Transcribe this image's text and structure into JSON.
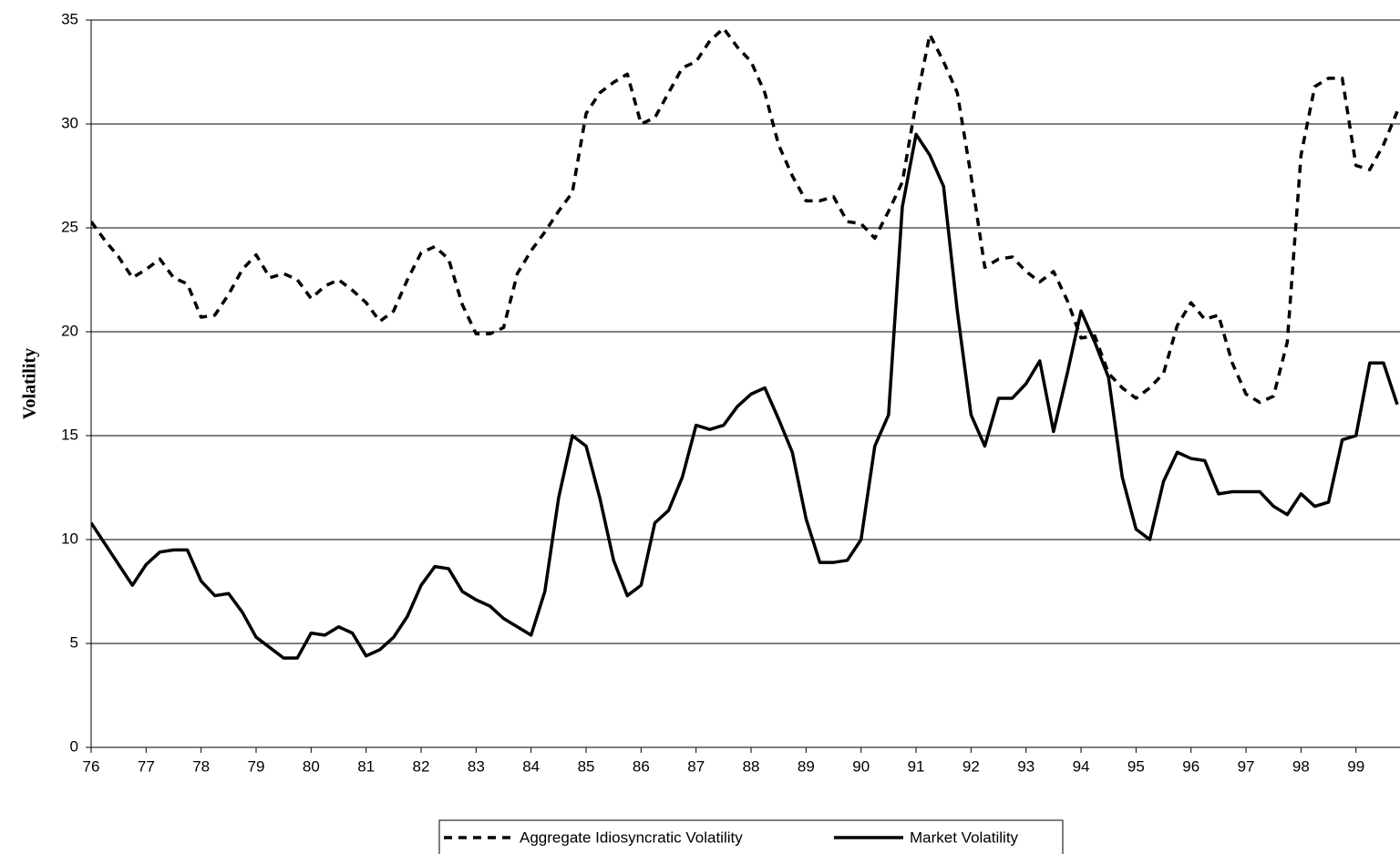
{
  "chart_data": {
    "type": "line",
    "y_label": "Volatility",
    "xlim": [
      76,
      99.8
    ],
    "xticks": [
      76,
      77,
      78,
      79,
      80,
      81,
      82,
      83,
      84,
      85,
      86,
      87,
      88,
      89,
      90,
      91,
      92,
      93,
      94,
      95,
      96,
      97,
      98,
      99
    ],
    "ylim": [
      0,
      35
    ],
    "yticks": [
      0,
      5,
      10,
      15,
      20,
      25,
      30,
      35
    ],
    "grid": true,
    "legend": "bottom",
    "x": [
      76,
      76.25,
      76.5,
      76.75,
      77,
      77.25,
      77.5,
      77.75,
      78,
      78.25,
      78.5,
      78.75,
      79,
      79.25,
      79.5,
      79.75,
      80,
      80.25,
      80.5,
      80.75,
      81,
      81.25,
      81.5,
      81.75,
      82,
      82.25,
      82.5,
      82.75,
      83,
      83.25,
      83.5,
      83.75,
      84,
      84.25,
      84.5,
      84.75,
      85,
      85.25,
      85.5,
      85.75,
      86,
      86.25,
      86.5,
      86.75,
      87,
      87.25,
      87.5,
      87.75,
      88,
      88.25,
      88.5,
      88.75,
      89,
      89.25,
      89.5,
      89.75,
      90,
      90.25,
      90.5,
      90.75,
      91,
      91.25,
      91.5,
      91.75,
      92,
      92.25,
      92.5,
      92.75,
      93,
      93.25,
      93.5,
      93.75,
      94,
      94.25,
      94.5,
      94.75,
      95,
      95.25,
      95.5,
      95.75,
      96,
      96.25,
      96.5,
      96.75,
      97,
      97.25,
      97.5,
      97.75,
      98,
      98.25,
      98.5,
      98.75,
      99,
      99.25,
      99.5,
      99.75
    ],
    "series": [
      {
        "name": "Aggregate Idiosyncratic Volatility",
        "color": "#000000",
        "line_style": "dashed",
        "values": [
          25.3,
          24.4,
          23.6,
          22.6,
          23.0,
          23.5,
          22.6,
          22.3,
          20.7,
          20.8,
          21.8,
          23.0,
          23.7,
          22.6,
          22.8,
          22.5,
          21.6,
          22.2,
          22.5,
          22.0,
          21.4,
          20.5,
          21.0,
          22.5,
          23.8,
          24.1,
          23.5,
          21.3,
          19.9,
          19.9,
          20.2,
          22.8,
          23.9,
          24.8,
          25.8,
          26.7,
          30.5,
          31.5,
          32.0,
          32.4,
          30.0,
          30.3,
          31.5,
          32.7,
          33.0,
          34.0,
          34.6,
          33.7,
          33.0,
          31.5,
          29.0,
          27.5,
          26.3,
          26.3,
          26.5,
          25.3,
          25.2,
          24.5,
          25.8,
          27.2,
          31.0,
          34.3,
          33.0,
          31.5,
          27.5,
          23.1,
          23.5,
          23.6,
          22.9,
          22.4,
          22.9,
          21.5,
          19.7,
          19.8,
          18.0,
          17.3,
          16.8,
          17.3,
          18.0,
          20.3,
          21.4,
          20.6,
          20.8,
          18.5,
          17.0,
          16.6,
          16.9,
          19.5,
          28.5,
          31.8,
          32.2,
          32.2,
          28.0,
          27.8,
          29.0,
          30.6
        ]
      },
      {
        "name": "Market Volatility",
        "color": "#000000",
        "line_style": "solid",
        "values": [
          10.8,
          9.8,
          8.8,
          7.8,
          8.8,
          9.4,
          9.5,
          9.5,
          8.0,
          7.3,
          7.4,
          6.5,
          5.3,
          4.8,
          4.3,
          4.3,
          5.5,
          5.4,
          5.8,
          5.5,
          4.4,
          4.7,
          5.3,
          6.3,
          7.8,
          8.7,
          8.6,
          7.5,
          7.1,
          6.8,
          6.2,
          5.8,
          5.4,
          7.5,
          12.0,
          15.0,
          14.5,
          12.0,
          9.0,
          7.3,
          7.8,
          10.8,
          11.4,
          13.0,
          15.5,
          15.3,
          15.5,
          16.4,
          17.0,
          17.3,
          15.8,
          14.2,
          11.0,
          8.9,
          8.9,
          9.0,
          10.0,
          14.5,
          16.0,
          26.0,
          29.5,
          28.5,
          27.0,
          21.0,
          16.0,
          14.5,
          16.8,
          16.8,
          17.5,
          18.6,
          15.2,
          18.0,
          21.0,
          19.5,
          17.8,
          13.0,
          10.5,
          10.0,
          12.8,
          14.2,
          13.9,
          13.8,
          12.2,
          12.3,
          12.3,
          12.3,
          11.6,
          11.2,
          12.2,
          11.6,
          11.8,
          14.8,
          15.0,
          18.5,
          18.5,
          16.5
        ]
      }
    ]
  }
}
